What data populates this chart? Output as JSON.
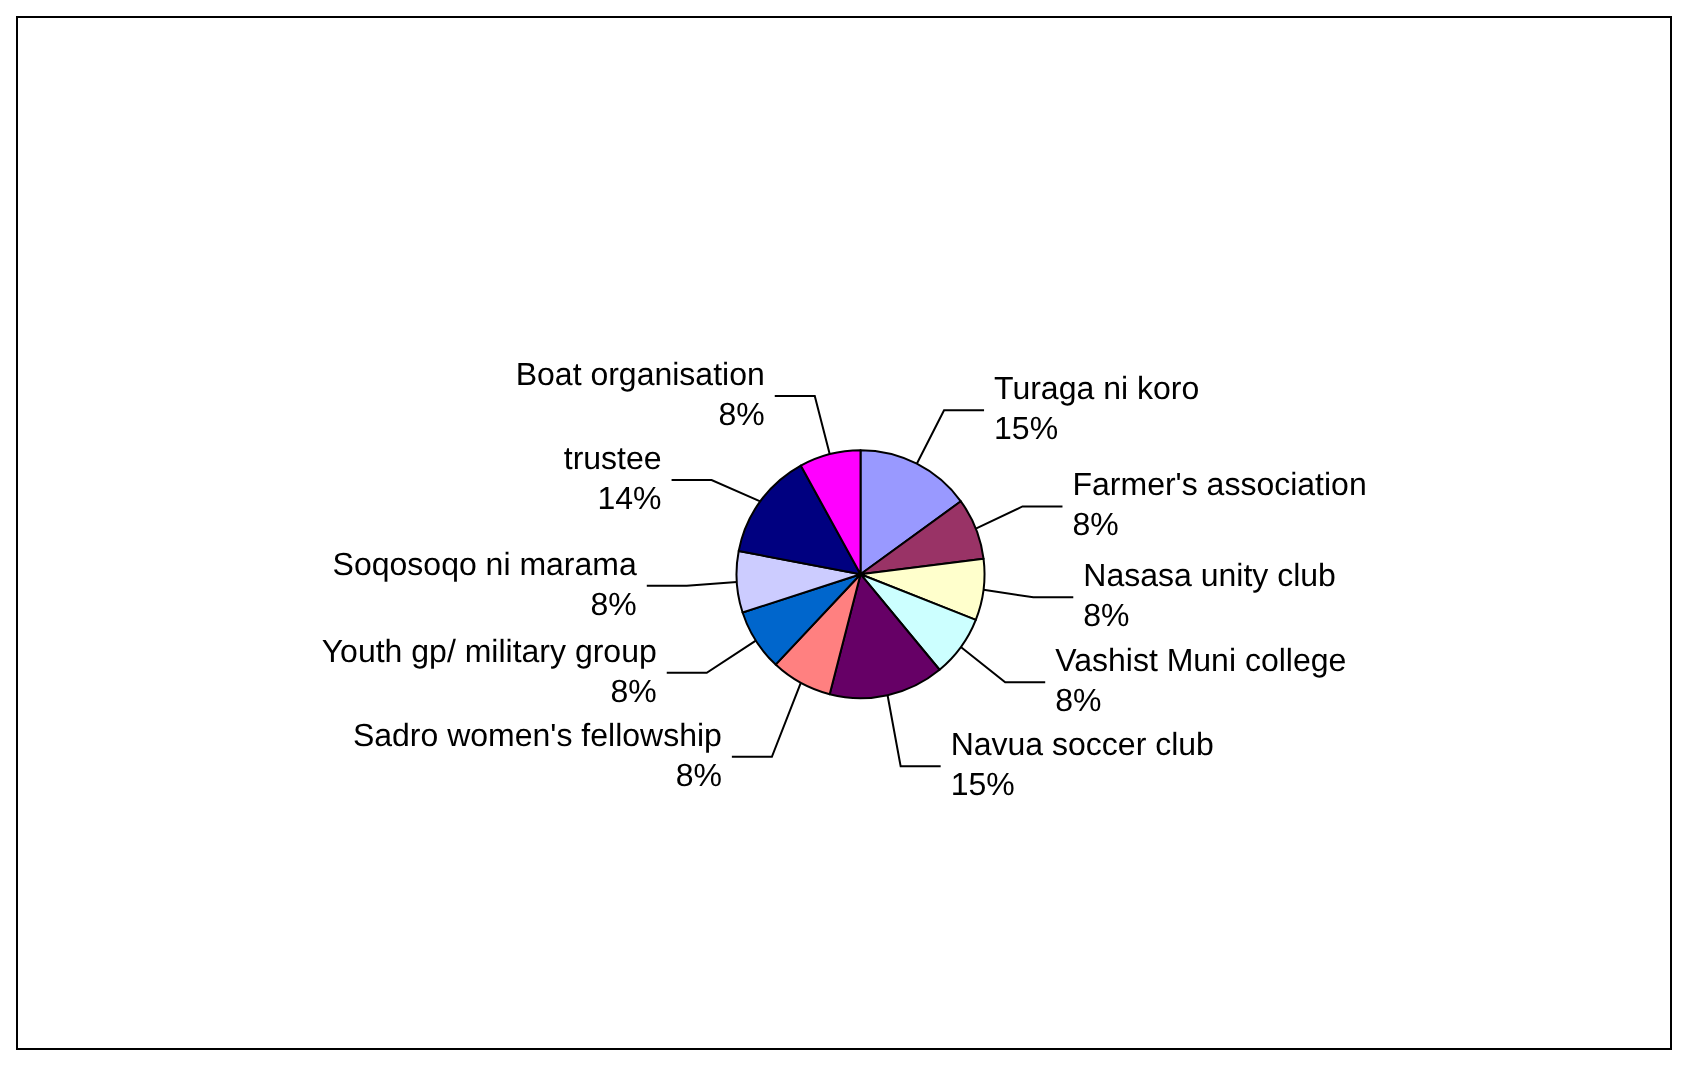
{
  "chart_data": {
    "type": "pie",
    "categories": [
      "Turaga ni koro",
      "Farmer's association",
      "Nasasa unity club",
      "Vashist Muni college",
      "Navua soccer club",
      "Sadro women's fellowship",
      "Youth gp/ military group",
      "Soqosoqo ni marama",
      "trustee",
      "Boat organisation"
    ],
    "values": [
      15,
      8,
      8,
      8,
      15,
      8,
      8,
      8,
      14,
      8
    ],
    "colors": [
      "#9999ff",
      "#993366",
      "#ffffcc",
      "#ccffff",
      "#660066",
      "#ff8080",
      "#0066cc",
      "#ccccff",
      "#000080",
      "#ff00ff"
    ],
    "value_labels": [
      "15%",
      "8%",
      "8%",
      "8%",
      "15%",
      "8%",
      "8%",
      "8%",
      "14%",
      "8%"
    ],
    "legend": false
  }
}
